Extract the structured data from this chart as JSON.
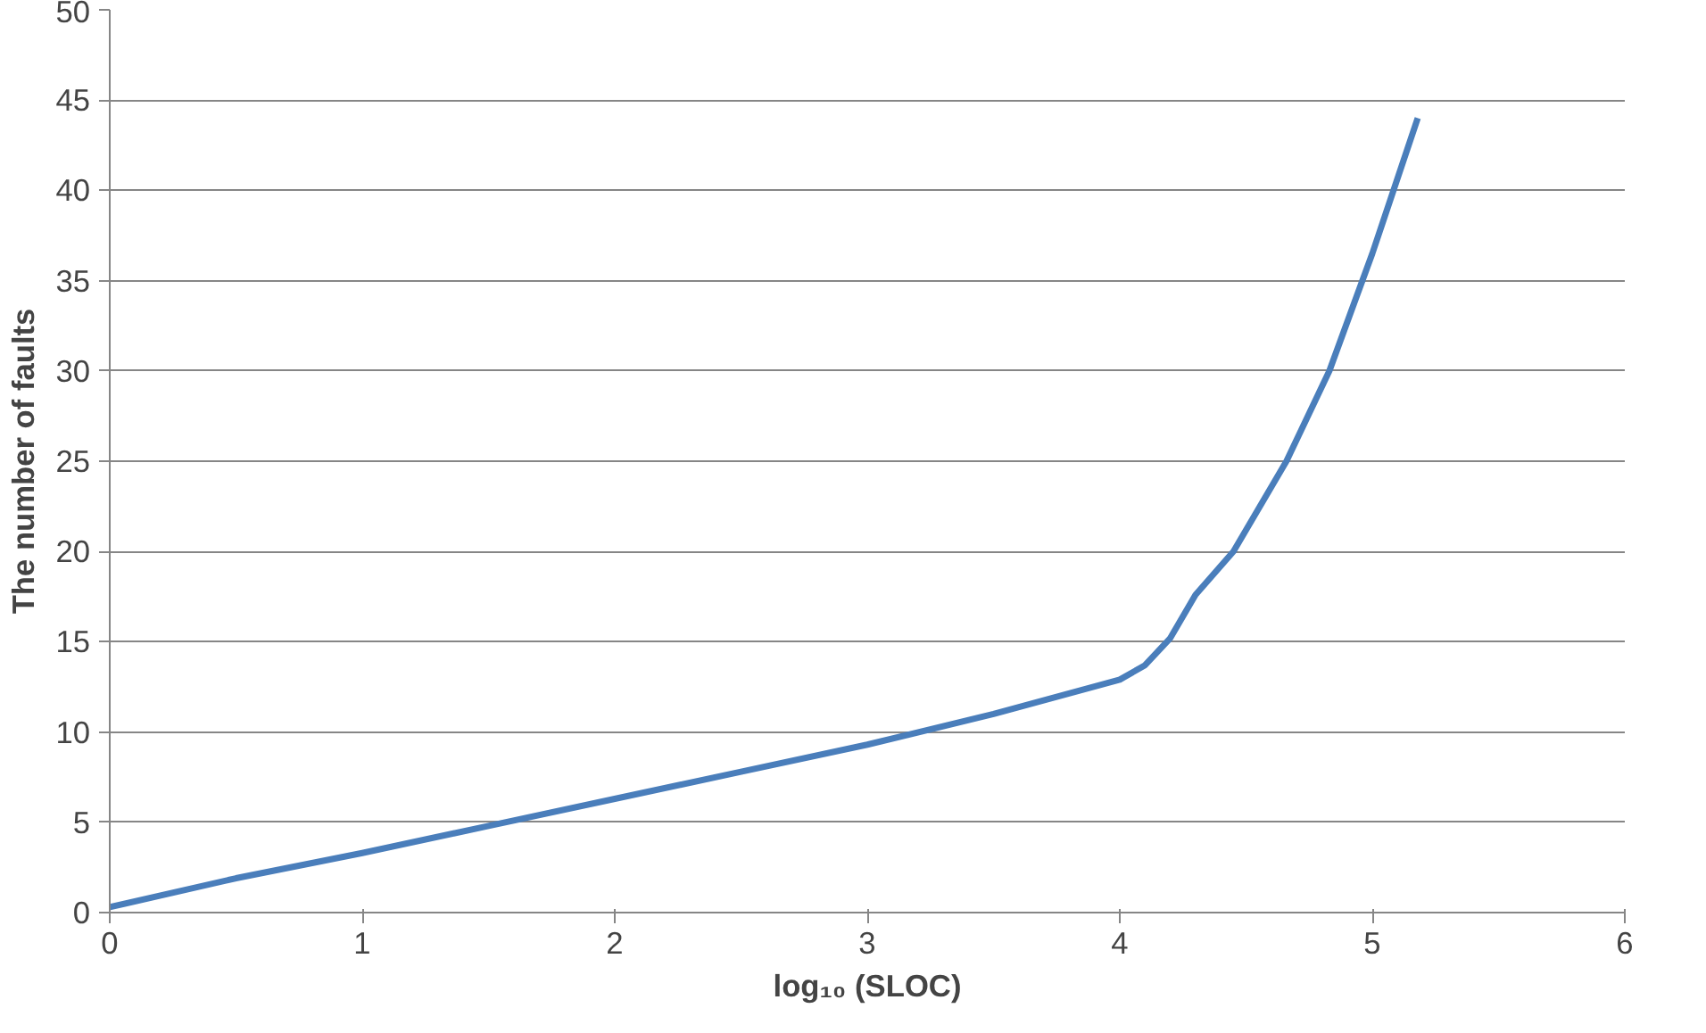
{
  "chart_data": {
    "type": "line",
    "xlabel": "log₁₀ (SLOC)",
    "ylabel": "The number of faults",
    "x": [
      0,
      0.5,
      1,
      1.5,
      2,
      2.5,
      3,
      3.5,
      4,
      4.1,
      4.2,
      4.3,
      4.45,
      4.66,
      4.83,
      5,
      5.18
    ],
    "series": [
      {
        "color": "#4a7ebb",
        "values": [
          0.3,
          1.9,
          3.3,
          4.8,
          6.3,
          7.8,
          9.3,
          11,
          12.9,
          13.7,
          15.2,
          17.6,
          20,
          25,
          30,
          36.5,
          44
        ]
      }
    ],
    "xlim": [
      0,
      6
    ],
    "xticks": [
      0,
      1,
      2,
      3,
      4,
      5,
      6
    ],
    "ylim": [
      0,
      50
    ],
    "yticks": [
      0,
      5,
      10,
      15,
      20,
      25,
      30,
      35,
      40,
      45,
      50
    ],
    "grid": "y",
    "marker": "none",
    "line_style": "solid"
  }
}
